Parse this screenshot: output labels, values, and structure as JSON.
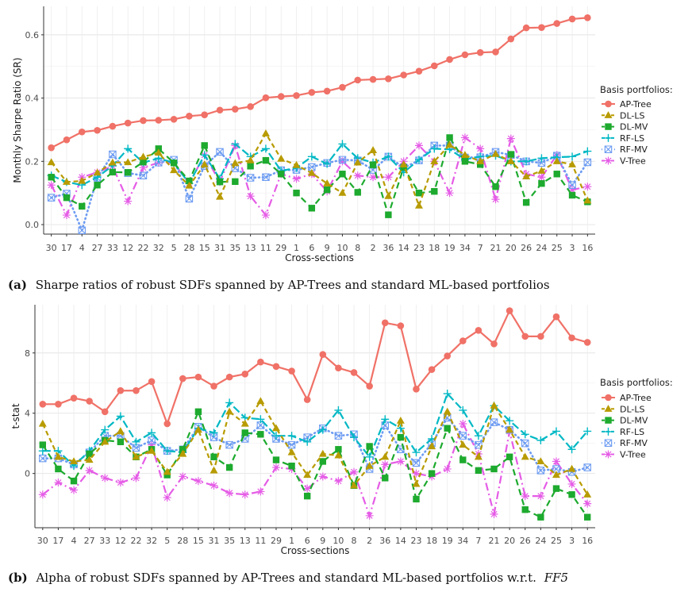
{
  "series_styles": {
    "AP-Tree": {
      "color": "#f07167",
      "marker": "circle",
      "dash": ""
    },
    "DL-LS": {
      "color": "#b89b00",
      "marker": "triangle",
      "dash": "6,4"
    },
    "DL-MV": {
      "color": "#1daa2e",
      "marker": "square",
      "dash": "8,5"
    },
    "RF-LS": {
      "color": "#00b8c4",
      "marker": "plus",
      "dash": "10,4"
    },
    "RF-MV": {
      "color": "#6d9cf2",
      "marker": "boxx",
      "dash": "1,4"
    },
    "V-Tree": {
      "color": "#e55ce6",
      "marker": "asterisk",
      "dash": "10,4,2,4"
    }
  },
  "chart_data": [
    {
      "type": "line",
      "ylabel": "Monthly Sharpe Ratio (SR)",
      "xlabel": "Cross-sections",
      "legend_title": "Basis portfolios:",
      "legend_position": "right",
      "yticks": [
        0.0,
        0.2,
        0.4,
        0.6
      ],
      "ylim": [
        -0.03,
        0.69
      ],
      "grid": true,
      "categories": [
        "30",
        "17",
        "4",
        "27",
        "33",
        "12",
        "22",
        "32",
        "5",
        "28",
        "15",
        "31",
        "35",
        "13",
        "11",
        "29",
        "1",
        "6",
        "9",
        "10",
        "8",
        "2",
        "36",
        "14",
        "23",
        "18",
        "19",
        "34",
        "7",
        "21",
        "20",
        "26",
        "24",
        "25",
        "3",
        "16"
      ],
      "series": [
        {
          "name": "AP-Tree",
          "values": [
            0.243,
            0.268,
            0.293,
            0.298,
            0.311,
            0.321,
            0.329,
            0.33,
            0.333,
            0.343,
            0.347,
            0.362,
            0.365,
            0.373,
            0.401,
            0.405,
            0.408,
            0.418,
            0.422,
            0.434,
            0.457,
            0.459,
            0.461,
            0.473,
            0.485,
            0.502,
            0.522,
            0.537,
            0.544,
            0.546,
            0.587,
            0.622,
            0.623,
            0.636,
            0.65,
            0.654
          ]
        },
        {
          "name": "DL-LS",
          "values": [
            0.197,
            0.135,
            0.138,
            0.164,
            0.196,
            0.197,
            0.214,
            0.227,
            0.172,
            0.123,
            0.19,
            0.088,
            0.194,
            0.203,
            0.288,
            0.208,
            0.188,
            0.163,
            0.13,
            0.1,
            0.196,
            0.235,
            0.09,
            0.19,
            0.06,
            0.2,
            0.252,
            0.22,
            0.2,
            0.223,
            0.2,
            0.152,
            0.17,
            0.2,
            0.19,
            0.076
          ]
        },
        {
          "name": "DL-MV",
          "values": [
            0.15,
            0.085,
            0.058,
            0.125,
            0.166,
            0.165,
            0.198,
            0.24,
            0.195,
            0.138,
            0.25,
            0.135,
            0.136,
            0.185,
            0.203,
            0.16,
            0.1,
            0.052,
            0.11,
            0.16,
            0.102,
            0.189,
            0.031,
            0.181,
            0.1,
            0.105,
            0.275,
            0.2,
            0.19,
            0.12,
            0.222,
            0.07,
            0.13,
            0.16,
            0.093,
            0.072
          ]
        },
        {
          "name": "RF-LS",
          "values": [
            0.155,
            0.135,
            0.125,
            0.15,
            0.186,
            0.24,
            0.196,
            0.21,
            0.195,
            0.13,
            0.22,
            0.145,
            0.255,
            0.215,
            0.24,
            0.17,
            0.179,
            0.215,
            0.192,
            0.255,
            0.21,
            0.196,
            0.215,
            0.165,
            0.205,
            0.24,
            0.238,
            0.206,
            0.215,
            0.218,
            0.2,
            0.2,
            0.21,
            0.213,
            0.215,
            0.232
          ]
        },
        {
          "name": "RF-MV",
          "values": [
            0.085,
            0.098,
            -0.018,
            0.148,
            0.222,
            0.163,
            0.155,
            0.196,
            0.205,
            0.082,
            0.185,
            0.23,
            0.178,
            0.148,
            0.15,
            0.172,
            0.173,
            0.182,
            0.195,
            0.205,
            0.203,
            0.173,
            0.215,
            0.18,
            0.203,
            0.25,
            0.25,
            0.212,
            0.213,
            0.23,
            0.22,
            0.2,
            0.195,
            0.218,
            0.125,
            0.197
          ]
        },
        {
          "name": "V-Tree",
          "values": [
            0.125,
            0.03,
            0.15,
            0.165,
            0.185,
            0.074,
            0.18,
            0.196,
            0.195,
            0.13,
            0.22,
            0.135,
            0.25,
            0.09,
            0.03,
            0.16,
            0.145,
            0.16,
            0.105,
            0.2,
            0.155,
            0.15,
            0.15,
            0.2,
            0.25,
            0.2,
            0.1,
            0.275,
            0.24,
            0.08,
            0.272,
            0.16,
            0.15,
            0.22,
            0.11,
            0.12
          ]
        }
      ]
    },
    {
      "type": "line",
      "ylabel": "t-stat",
      "xlabel": "Cross-sections",
      "legend_title": "Basis portfolios:",
      "legend_position": "right",
      "yticks": [
        0,
        4,
        8
      ],
      "ylim": [
        -3.6,
        11.2
      ],
      "grid": true,
      "categories": [
        "30",
        "17",
        "4",
        "27",
        "33",
        "12",
        "22",
        "32",
        "5",
        "28",
        "15",
        "31",
        "35",
        "13",
        "11",
        "29",
        "1",
        "6",
        "9",
        "10",
        "8",
        "2",
        "36",
        "14",
        "23",
        "18",
        "19",
        "34",
        "7",
        "21",
        "20",
        "26",
        "24",
        "25",
        "3",
        "16"
      ],
      "series": [
        {
          "name": "AP-Tree",
          "values": [
            4.6,
            4.6,
            5.0,
            4.8,
            4.1,
            5.5,
            5.5,
            6.1,
            3.3,
            6.3,
            6.4,
            5.8,
            6.4,
            6.6,
            7.4,
            7.1,
            6.8,
            4.9,
            7.9,
            7.0,
            6.7,
            5.8,
            10.0,
            9.8,
            5.6,
            6.9,
            7.8,
            8.8,
            9.5,
            8.6,
            10.8,
            9.1,
            9.1,
            10.4,
            9.0,
            8.7
          ]
        },
        {
          "name": "DL-LS",
          "values": [
            3.3,
            1.1,
            0.8,
            0.9,
            2.1,
            2.8,
            1.1,
            1.5,
            0.1,
            1.3,
            2.9,
            0.2,
            4.1,
            3.3,
            4.8,
            3.0,
            1.4,
            -0.1,
            1.3,
            1.2,
            -0.8,
            0.5,
            1.1,
            3.5,
            -0.7,
            1.8,
            4.1,
            1.9,
            1.1,
            4.5,
            2.9,
            1.1,
            0.8,
            -0.1,
            0.3,
            -1.4
          ]
        },
        {
          "name": "DL-MV",
          "values": [
            1.9,
            0.3,
            -0.5,
            1.3,
            2.2,
            2.1,
            1.1,
            1.6,
            -0.1,
            1.6,
            4.1,
            1.1,
            0.4,
            2.7,
            2.6,
            0.9,
            0.5,
            -1.5,
            0.8,
            1.6,
            -0.8,
            1.8,
            -0.3,
            2.4,
            -1.7,
            0.0,
            3.0,
            0.9,
            0.2,
            0.3,
            1.1,
            -2.4,
            -2.9,
            -1.0,
            -1.4,
            -2.9
          ]
        },
        {
          "name": "RF-LS",
          "values": [
            1.5,
            1.5,
            0.5,
            1.5,
            2.9,
            3.8,
            2.1,
            2.7,
            1.5,
            1.4,
            3.0,
            2.7,
            4.7,
            3.7,
            3.6,
            2.5,
            2.5,
            2.1,
            2.9,
            4.2,
            2.4,
            1.1,
            3.6,
            3.0,
            1.4,
            2.3,
            5.3,
            4.2,
            2.5,
            4.5,
            3.5,
            2.6,
            2.2,
            2.8,
            1.6,
            2.8
          ]
        },
        {
          "name": "RF-MV",
          "values": [
            1.0,
            1.0,
            0.6,
            1.4,
            2.5,
            2.5,
            1.7,
            2.2,
            1.5,
            1.6,
            3.1,
            2.4,
            1.9,
            2.3,
            3.2,
            2.3,
            1.9,
            2.4,
            3.0,
            2.5,
            2.6,
            0.3,
            3.2,
            1.6,
            0.7,
            2.0,
            3.7,
            2.5,
            1.9,
            3.4,
            2.9,
            2.0,
            0.2,
            0.3,
            0.1,
            0.4
          ]
        },
        {
          "name": "V-Tree",
          "values": [
            -1.4,
            -0.6,
            -1.1,
            0.2,
            -0.3,
            -0.6,
            -0.3,
            1.9,
            -1.6,
            -0.2,
            -0.5,
            -0.8,
            -1.3,
            -1.4,
            -1.2,
            0.4,
            0.3,
            -1.0,
            -0.2,
            -0.5,
            0.1,
            -2.8,
            0.6,
            0.8,
            0.0,
            -0.2,
            0.3,
            3.3,
            1.3,
            -2.7,
            2.8,
            -1.5,
            -1.5,
            0.8,
            -0.7,
            -2.0
          ]
        }
      ]
    }
  ],
  "captions": {
    "a_label": "(a)",
    "a_text": "Sharpe ratios of robust SDFs spanned by AP-Trees and standard ML-based portfolios",
    "b_label": "(b)",
    "b_text": "Alpha of robust SDFs spanned by AP-Trees and standard ML-based portfolios w.r.t.",
    "b_italic": "FF5"
  }
}
